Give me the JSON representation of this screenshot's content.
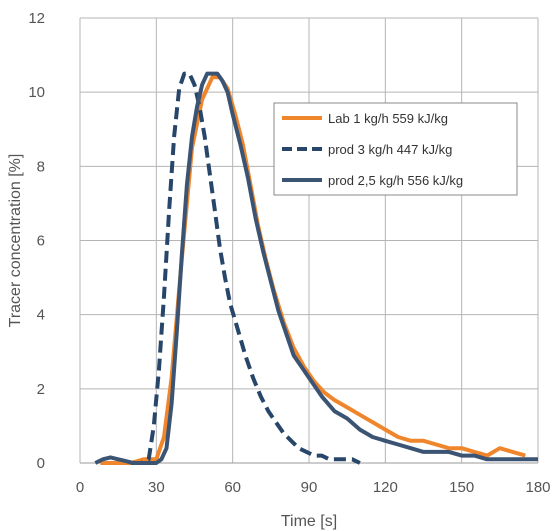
{
  "chart_data": {
    "type": "line",
    "xlabel": "Time [s]",
    "ylabel": "Tracer concentration [%]",
    "xlim": [
      0,
      180
    ],
    "ylim": [
      0,
      12
    ],
    "xticks": [
      "0",
      "30",
      "60",
      "90",
      "120",
      "150",
      "180"
    ],
    "yticks": [
      "0",
      "2",
      "4",
      "6",
      "8",
      "10",
      "12"
    ],
    "grid": true,
    "legend_position": "top-right",
    "series": [
      {
        "name": "Lab 1 kg/h 559 kJ/kg",
        "color": "#f0862c",
        "style": "solid",
        "x": [
          8,
          15,
          20,
          25,
          28,
          30,
          33,
          36,
          40,
          44,
          48,
          52,
          55,
          58,
          61,
          64,
          67,
          70,
          73,
          76,
          80,
          84,
          88,
          92,
          96,
          100,
          105,
          110,
          115,
          120,
          125,
          130,
          135,
          140,
          145,
          150,
          155,
          160,
          165,
          170,
          175
        ],
        "y": [
          0,
          0,
          0,
          0.1,
          0.1,
          0.1,
          0.7,
          2.3,
          5.5,
          8.5,
          9.8,
          10.4,
          10.4,
          10.1,
          9.4,
          8.6,
          7.5,
          6.4,
          5.5,
          4.7,
          3.8,
          3.1,
          2.6,
          2.2,
          1.9,
          1.7,
          1.5,
          1.3,
          1.1,
          0.9,
          0.7,
          0.6,
          0.6,
          0.5,
          0.4,
          0.4,
          0.3,
          0.2,
          0.4,
          0.3,
          0.2
        ]
      },
      {
        "name": "prod 3 kg/h 447 kJ/kg",
        "color": "#27466a",
        "style": "dashed",
        "x": [
          20,
          24,
          27,
          29,
          31,
          33,
          35,
          37,
          39,
          41,
          43,
          45,
          47,
          49,
          51,
          53,
          55,
          57,
          59,
          62,
          65,
          68,
          71,
          74,
          77,
          80,
          83,
          86,
          89,
          92,
          95,
          98,
          101,
          104,
          107,
          110
        ],
        "y": [
          0,
          0,
          0.1,
          1.0,
          2.5,
          4.5,
          6.8,
          8.8,
          10.1,
          10.5,
          10.5,
          10.2,
          9.6,
          8.8,
          7.8,
          6.8,
          5.8,
          5.0,
          4.3,
          3.6,
          2.9,
          2.3,
          1.8,
          1.4,
          1.1,
          0.8,
          0.6,
          0.4,
          0.3,
          0.2,
          0.2,
          0.1,
          0.1,
          0.1,
          0.1,
          0.0
        ]
      },
      {
        "name": "prod 2,5 kg/h 556 kJ/kg",
        "color": "#3b5473",
        "style": "solid",
        "x": [
          6,
          9,
          12,
          15,
          18,
          21,
          24,
          27,
          30,
          32,
          34,
          36,
          38,
          40,
          42,
          44,
          46,
          48,
          50,
          52,
          54,
          56,
          58,
          60,
          63,
          66,
          69,
          72,
          75,
          78,
          81,
          84,
          87,
          90,
          95,
          100,
          105,
          110,
          115,
          120,
          125,
          130,
          135,
          140,
          145,
          150,
          155,
          160,
          165,
          170,
          175,
          180
        ],
        "y": [
          0,
          0.1,
          0.15,
          0.1,
          0.05,
          0.0,
          0.0,
          0.0,
          0.0,
          0.1,
          0.4,
          1.6,
          3.5,
          5.6,
          7.5,
          8.8,
          9.6,
          10.2,
          10.5,
          10.5,
          10.5,
          10.3,
          10.0,
          9.4,
          8.6,
          7.7,
          6.6,
          5.7,
          4.9,
          4.1,
          3.5,
          2.9,
          2.6,
          2.3,
          1.8,
          1.4,
          1.2,
          0.9,
          0.7,
          0.6,
          0.5,
          0.4,
          0.3,
          0.3,
          0.3,
          0.2,
          0.2,
          0.1,
          0.1,
          0.1,
          0.1,
          0.1
        ]
      }
    ]
  }
}
